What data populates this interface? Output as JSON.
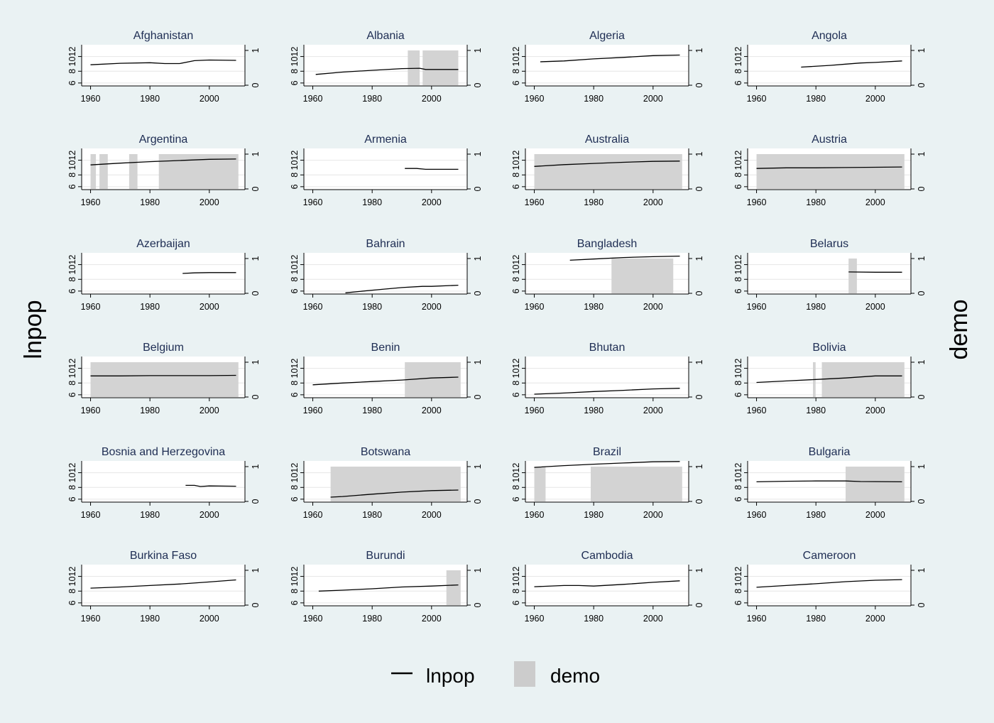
{
  "chart_data": {
    "type": "line",
    "left_axis_label": "lnpop",
    "right_axis_label": "demo",
    "x_range": [
      1957,
      2012
    ],
    "x_ticks": [
      "1960",
      "1980",
      "2000"
    ],
    "y_left_ticks": [
      "6",
      "8",
      "1012"
    ],
    "y_right_ticks": [
      "0",
      "1"
    ],
    "legend": [
      {
        "label": "lnpop",
        "kind": "line",
        "color": "#000000"
      },
      {
        "label": "demo",
        "kind": "area",
        "color": "#cccccc"
      }
    ],
    "panels": [
      {
        "country": "Afghanistan",
        "line": [
          [
            1960,
            9.1
          ],
          [
            1970,
            9.35
          ],
          [
            1980,
            9.45
          ],
          [
            1985,
            9.3
          ],
          [
            1990,
            9.3
          ],
          [
            1995,
            9.8
          ],
          [
            2000,
            9.9
          ],
          [
            2009,
            9.85
          ]
        ],
        "demo": []
      },
      {
        "country": "Albania",
        "line": [
          [
            1961,
            7.45
          ],
          [
            1970,
            7.85
          ],
          [
            1980,
            8.15
          ],
          [
            1990,
            8.45
          ],
          [
            1996,
            8.5
          ],
          [
            1998,
            8.3
          ],
          [
            2009,
            8.3
          ]
        ],
        "demo": [
          [
            1992,
            1996
          ],
          [
            1997,
            2009
          ]
        ]
      },
      {
        "country": "Algeria",
        "line": [
          [
            1962,
            9.6
          ],
          [
            1970,
            9.75
          ],
          [
            1980,
            10.1
          ],
          [
            1990,
            10.35
          ],
          [
            2000,
            10.65
          ],
          [
            2009,
            10.75
          ]
        ],
        "demo": []
      },
      {
        "country": "Angola",
        "line": [
          [
            1975,
            8.7
          ],
          [
            1985,
            9.0
          ],
          [
            1990,
            9.2
          ],
          [
            1995,
            9.4
          ],
          [
            2000,
            9.5
          ],
          [
            2009,
            9.75
          ]
        ],
        "demo": []
      },
      {
        "country": "Argentina",
        "line": [
          [
            1960,
            9.7
          ],
          [
            1970,
            10.0
          ],
          [
            1980,
            10.25
          ],
          [
            1990,
            10.45
          ],
          [
            2000,
            10.65
          ],
          [
            2009,
            10.7
          ]
        ],
        "demo": [
          [
            1960,
            1961.8
          ],
          [
            1963,
            1965.8
          ],
          [
            1973,
            1975.8
          ],
          [
            1983,
            2009.8
          ]
        ]
      },
      {
        "country": "Armenia",
        "line": [
          [
            1991,
            9.1
          ],
          [
            1995,
            9.1
          ],
          [
            1998,
            8.95
          ],
          [
            2009,
            8.95
          ]
        ],
        "demo": []
      },
      {
        "country": "Australia",
        "line": [
          [
            1960,
            9.45
          ],
          [
            1970,
            9.75
          ],
          [
            1980,
            9.95
          ],
          [
            1990,
            10.15
          ],
          [
            2000,
            10.3
          ],
          [
            2009,
            10.35
          ]
        ],
        "demo": [
          [
            1960,
            2009.8
          ]
        ]
      },
      {
        "country": "Austria",
        "line": [
          [
            1960,
            9.1
          ],
          [
            1970,
            9.2
          ],
          [
            1980,
            9.2
          ],
          [
            1990,
            9.25
          ],
          [
            2000,
            9.3
          ],
          [
            2009,
            9.35
          ]
        ],
        "demo": [
          [
            1960,
            2009.8
          ]
        ]
      },
      {
        "country": "Azerbaijan",
        "line": [
          [
            1991,
            9.0
          ],
          [
            1995,
            9.1
          ],
          [
            2000,
            9.15
          ],
          [
            2009,
            9.15
          ]
        ],
        "demo": []
      },
      {
        "country": "Bahrain",
        "line": [
          [
            1971,
            5.7
          ],
          [
            1980,
            6.15
          ],
          [
            1990,
            6.6
          ],
          [
            1997,
            6.8
          ],
          [
            2000,
            6.8
          ],
          [
            2009,
            7.0
          ]
        ],
        "demo": []
      },
      {
        "country": "Bangladesh",
        "line": [
          [
            1972,
            11.25
          ],
          [
            1980,
            11.45
          ],
          [
            1990,
            11.7
          ],
          [
            2000,
            11.85
          ],
          [
            2009,
            11.95
          ]
        ],
        "demo": [
          [
            1986,
            2006.8
          ]
        ]
      },
      {
        "country": "Belarus",
        "line": [
          [
            1991,
            9.25
          ],
          [
            2000,
            9.2
          ],
          [
            2009,
            9.2
          ]
        ],
        "demo": [
          [
            1991,
            1993.8
          ]
        ]
      },
      {
        "country": "Belgium",
        "line": [
          [
            1960,
            9.2
          ],
          [
            1970,
            9.2
          ],
          [
            1980,
            9.25
          ],
          [
            1990,
            9.25
          ],
          [
            2000,
            9.25
          ],
          [
            2009,
            9.3
          ]
        ],
        "demo": [
          [
            1960,
            2009.8
          ]
        ]
      },
      {
        "country": "Benin",
        "line": [
          [
            1960,
            7.7
          ],
          [
            1970,
            8.0
          ],
          [
            1980,
            8.25
          ],
          [
            1990,
            8.5
          ],
          [
            2000,
            8.85
          ],
          [
            2009,
            9.0
          ]
        ],
        "demo": [
          [
            1991,
            2009.8
          ]
        ]
      },
      {
        "country": "Bhutan",
        "line": [
          [
            1960,
            6.1
          ],
          [
            1970,
            6.3
          ],
          [
            1980,
            6.55
          ],
          [
            1990,
            6.75
          ],
          [
            2000,
            7.0
          ],
          [
            2009,
            7.1
          ]
        ],
        "demo": []
      },
      {
        "country": "Bolivia",
        "line": [
          [
            1960,
            8.1
          ],
          [
            1970,
            8.35
          ],
          [
            1980,
            8.6
          ],
          [
            1990,
            8.85
          ],
          [
            2000,
            9.2
          ],
          [
            2009,
            9.2
          ]
        ],
        "demo": [
          [
            1979,
            1979.9
          ],
          [
            1982,
            2009.8
          ]
        ]
      },
      {
        "country": "Bosnia and Herzegovina",
        "line": [
          [
            1992,
            8.35
          ],
          [
            1995,
            8.35
          ],
          [
            1997,
            8.15
          ],
          [
            2000,
            8.25
          ],
          [
            2009,
            8.2
          ]
        ],
        "demo": []
      },
      {
        "country": "Botswana",
        "line": [
          [
            1966,
            6.35
          ],
          [
            1970,
            6.45
          ],
          [
            1980,
            6.85
          ],
          [
            1990,
            7.2
          ],
          [
            2000,
            7.45
          ],
          [
            2009,
            7.55
          ]
        ],
        "demo": [
          [
            1966,
            2009.8
          ]
        ]
      },
      {
        "country": "Brazil",
        "line": [
          [
            1960,
            11.4
          ],
          [
            1970,
            11.7
          ],
          [
            1980,
            11.95
          ],
          [
            1990,
            12.15
          ],
          [
            2000,
            12.35
          ],
          [
            2009,
            12.4
          ]
        ],
        "demo": [
          [
            1960,
            1963.8
          ],
          [
            1979,
            2009.8
          ]
        ]
      },
      {
        "country": "Bulgaria",
        "line": [
          [
            1960,
            8.95
          ],
          [
            1970,
            9.05
          ],
          [
            1980,
            9.1
          ],
          [
            1990,
            9.1
          ],
          [
            1995,
            9.0
          ],
          [
            2009,
            8.95
          ]
        ],
        "demo": [
          [
            1990,
            2009.8
          ]
        ]
      },
      {
        "country": "Burkina Faso",
        "line": [
          [
            1960,
            8.5
          ],
          [
            1970,
            8.7
          ],
          [
            1980,
            8.95
          ],
          [
            1990,
            9.2
          ],
          [
            2000,
            9.55
          ],
          [
            2009,
            9.9
          ]
        ],
        "demo": []
      },
      {
        "country": "Burundi",
        "line": [
          [
            1962,
            8.0
          ],
          [
            1970,
            8.15
          ],
          [
            1980,
            8.4
          ],
          [
            1990,
            8.7
          ],
          [
            2000,
            8.85
          ],
          [
            2009,
            9.05
          ]
        ],
        "demo": [
          [
            2005,
            2009.8
          ]
        ]
      },
      {
        "country": "Cambodia",
        "line": [
          [
            1960,
            8.75
          ],
          [
            1970,
            8.95
          ],
          [
            1975,
            8.95
          ],
          [
            1980,
            8.85
          ],
          [
            1990,
            9.15
          ],
          [
            2000,
            9.5
          ],
          [
            2009,
            9.75
          ]
        ],
        "demo": []
      },
      {
        "country": "Cameroon",
        "line": [
          [
            1960,
            8.65
          ],
          [
            1970,
            8.95
          ],
          [
            1980,
            9.25
          ],
          [
            1990,
            9.6
          ],
          [
            2000,
            9.85
          ],
          [
            2009,
            9.95
          ]
        ],
        "demo": []
      }
    ]
  }
}
